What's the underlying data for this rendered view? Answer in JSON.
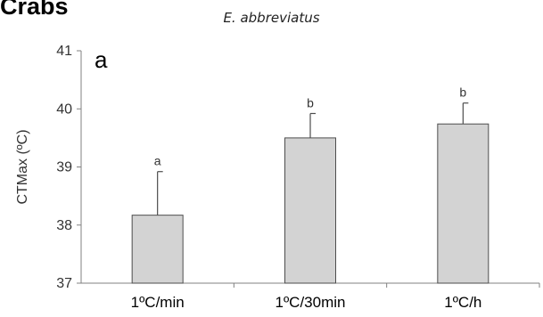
{
  "heading": "Crabs",
  "panel_label": "a",
  "chart_data": {
    "type": "bar",
    "title": "E. abbreviatus",
    "ylabel": "CTMax (ºC)",
    "xlabel": "",
    "categories": [
      "1ºC/min",
      "1ºC/30min",
      "1ºC/h"
    ],
    "values": [
      38.17,
      39.5,
      39.74
    ],
    "error_upper": [
      0.75,
      0.42,
      0.36
    ],
    "significance_labels": [
      "a",
      "b",
      "b"
    ],
    "ylim": [
      37,
      41
    ],
    "yticks": [
      "37",
      "38",
      "39",
      "40",
      "41"
    ],
    "grid": false,
    "legend": "none",
    "colors": {
      "bar_fill": "#d3d3d3",
      "bar_stroke": "#4d4d4d",
      "axis": "#808080"
    }
  }
}
